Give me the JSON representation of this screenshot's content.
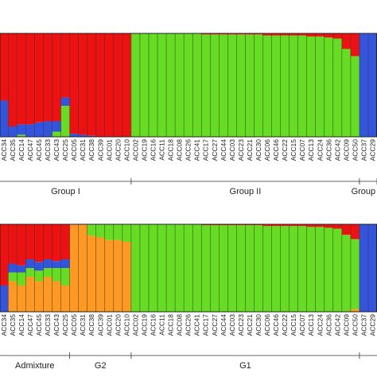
{
  "chart_data": [
    {
      "type": "bar",
      "stacked": true,
      "categories": [
        "ACC34",
        "ACC35",
        "ACC14",
        "ACC47",
        "ACC45",
        "ACC33",
        "ACC43",
        "ACC25",
        "ACC05",
        "ACC31",
        "ACC38",
        "ACC39",
        "ACC01",
        "ACC20",
        "ACC10",
        "ACC02",
        "ACC19",
        "ACC16",
        "ACC11",
        "ACC18",
        "ACC08",
        "ACC26",
        "ACC41",
        "ACC17",
        "ACC27",
        "ACC44",
        "ACC03",
        "ACC23",
        "ACC21",
        "ACC30",
        "ACC06",
        "ACC46",
        "ACC22",
        "ACC15",
        "ACC07",
        "ACC13",
        "ACC24",
        "ACC36",
        "ACC42",
        "ACC09",
        "ACC50",
        "ACC37",
        "ACC29"
      ],
      "series": [
        {
          "color": "#66dd22",
          "values": [
            0,
            0,
            0.02,
            0,
            0,
            0,
            0.05,
            0.3,
            0,
            0,
            0,
            0,
            0,
            0,
            0,
            1,
            1,
            1,
            1,
            1,
            1,
            1,
            1,
            0.99,
            0.99,
            0.99,
            0.99,
            0.99,
            0.99,
            0.99,
            0.98,
            0.98,
            0.98,
            0.98,
            0.98,
            0.97,
            0.97,
            0.96,
            0.95,
            0.85,
            0.78,
            0,
            0
          ]
        },
        {
          "color": "#3355dd",
          "values": [
            0.35,
            0.1,
            0.1,
            0.12,
            0.14,
            0.15,
            0.1,
            0.08,
            0.03,
            0.02,
            0.01,
            0,
            0,
            0,
            0,
            0,
            0,
            0,
            0,
            0,
            0,
            0,
            0,
            0,
            0,
            0,
            0,
            0,
            0,
            0,
            0,
            0,
            0,
            0,
            0,
            0,
            0,
            0,
            0,
            0,
            0,
            1,
            1
          ]
        },
        {
          "color": "#ee1111",
          "values": [
            0.65,
            0.9,
            0.88,
            0.88,
            0.86,
            0.85,
            0.85,
            0.62,
            0.97,
            0.98,
            0.99,
            1,
            1,
            1,
            1,
            0,
            0,
            0,
            0,
            0,
            0,
            0,
            0,
            0.01,
            0.01,
            0.01,
            0.01,
            0.01,
            0.01,
            0.01,
            0.02,
            0.02,
            0.02,
            0.02,
            0.02,
            0.03,
            0.03,
            0.04,
            0.05,
            0.15,
            0.22,
            0,
            0
          ]
        }
      ],
      "ylim": [
        0,
        1
      ],
      "groups": [
        {
          "label": "Group I",
          "size": 15
        },
        {
          "label": "Group II",
          "size": 26
        },
        {
          "label": "Group III",
          "size": 2
        }
      ]
    },
    {
      "type": "bar",
      "stacked": true,
      "categories": [
        "ACC34",
        "ACC35",
        "ACC14",
        "ACC47",
        "ACC45",
        "ACC33",
        "ACC43",
        "ACC25",
        "ACC05",
        "ACC31",
        "ACC38",
        "ACC39",
        "ACC01",
        "ACC20",
        "ACC10",
        "ACC02",
        "ACC19",
        "ACC16",
        "ACC11",
        "ACC18",
        "ACC08",
        "ACC26",
        "ACC41",
        "ACC17",
        "ACC27",
        "ACC44",
        "ACC03",
        "ACC23",
        "ACC21",
        "ACC30",
        "ACC06",
        "ACC46",
        "ACC22",
        "ACC15",
        "ACC07",
        "ACC13",
        "ACC24",
        "ACC36",
        "ACC42",
        "ACC09",
        "ACC50",
        "ACC37",
        "ACC29"
      ],
      "series": [
        {
          "color": "#ff9922",
          "values": [
            0,
            0.35,
            0.3,
            0.4,
            0.35,
            0.4,
            0.35,
            0.3,
            1,
            1,
            0.87,
            0.85,
            0.82,
            0.82,
            0.8,
            0,
            0,
            0,
            0,
            0,
            0,
            0,
            0,
            0,
            0,
            0,
            0,
            0,
            0,
            0,
            0,
            0,
            0,
            0,
            0,
            0,
            0,
            0,
            0,
            0,
            0.03,
            0,
            0
          ]
        },
        {
          "color": "#66dd22",
          "values": [
            0,
            0.1,
            0.15,
            0.1,
            0.12,
            0.1,
            0.15,
            0.2,
            0,
            0,
            0.13,
            0.15,
            0.18,
            0.18,
            0.2,
            1,
            1,
            1,
            1,
            1,
            1,
            1,
            1,
            0.99,
            0.99,
            0.99,
            0.99,
            0.99,
            0.99,
            0.99,
            0.98,
            0.98,
            0.98,
            0.98,
            0.98,
            0.97,
            0.97,
            0.96,
            0.95,
            0.88,
            0.8,
            0,
            0
          ]
        },
        {
          "color": "#3355dd",
          "values": [
            0.3,
            0.1,
            0.08,
            0.1,
            0.1,
            0.1,
            0.08,
            0.1,
            0,
            0,
            0,
            0,
            0,
            0,
            0,
            0,
            0,
            0,
            0,
            0,
            0,
            0,
            0,
            0,
            0,
            0,
            0,
            0,
            0,
            0,
            0,
            0,
            0,
            0,
            0,
            0,
            0,
            0,
            0,
            0,
            0,
            1,
            1
          ]
        },
        {
          "color": "#ee1111",
          "values": [
            0.7,
            0.45,
            0.47,
            0.4,
            0.43,
            0.4,
            0.42,
            0.4,
            0,
            0,
            0,
            0,
            0,
            0,
            0,
            0,
            0,
            0,
            0,
            0,
            0,
            0,
            0,
            0.01,
            0.01,
            0.01,
            0.01,
            0.01,
            0.01,
            0.01,
            0.02,
            0.02,
            0.02,
            0.02,
            0.02,
            0.03,
            0.03,
            0.04,
            0.05,
            0.12,
            0.17,
            0,
            0
          ]
        }
      ],
      "ylim": [
        0,
        1
      ],
      "groups": [
        {
          "label": "Admixture",
          "size": 8
        },
        {
          "label": "G2",
          "size": 7
        },
        {
          "label": "G1",
          "size": 26
        }
      ]
    }
  ]
}
